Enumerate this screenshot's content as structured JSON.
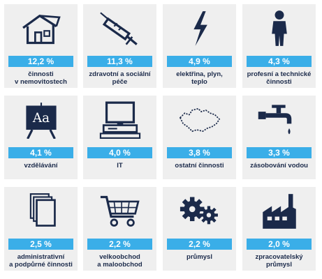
{
  "chart_data": {
    "type": "table",
    "unit": "%",
    "categories": [
      {
        "label": "činnosti\nv nemovitostech",
        "value_text": "12,2 %",
        "value": 12.2,
        "icon": "house-icon"
      },
      {
        "label": "zdravotní a sociální\npéče",
        "value_text": "11,3 %",
        "value": 11.3,
        "icon": "syringe-icon"
      },
      {
        "label": "elektřina, plyn,\nteplo",
        "value_text": "4,9 %",
        "value": 4.9,
        "icon": "lightning-icon"
      },
      {
        "label": "profesní a technické\nčinnosti",
        "value_text": "4,3 %",
        "value": 4.3,
        "icon": "person-icon"
      },
      {
        "label": "vzdělávání",
        "value_text": "4,1 %",
        "value": 4.1,
        "icon": "blackboard-icon"
      },
      {
        "label": "IT",
        "value_text": "4,0 %",
        "value": 4.0,
        "icon": "computer-icon"
      },
      {
        "label": "ostatní činnosti",
        "value_text": "3,8 %",
        "value": 3.8,
        "icon": "czech-map-icon"
      },
      {
        "label": "zásobování vodou",
        "value_text": "3,3 %",
        "value": 3.3,
        "icon": "water-tap-icon"
      },
      {
        "label": "administrativní\na podpůrné činnosti",
        "value_text": "2,5 %",
        "value": 2.5,
        "icon": "documents-icon"
      },
      {
        "label": "velkoobchod\na maloobchod",
        "value_text": "2,2 %",
        "value": 2.2,
        "icon": "shopping-cart-icon"
      },
      {
        "label": "průmysl",
        "value_text": "2,2 %",
        "value": 2.2,
        "icon": "gears-icon"
      },
      {
        "label": "zpracovatelský\nprůmysl",
        "value_text": "2,0 %",
        "value": 2.0,
        "icon": "factory-icon"
      }
    ]
  },
  "colors": {
    "tile_bg": "#efefef",
    "value_bar": "#3aaee8",
    "value_text": "#ffffff",
    "label_text": "#1b2a4a",
    "icon": "#1b2a4a"
  }
}
